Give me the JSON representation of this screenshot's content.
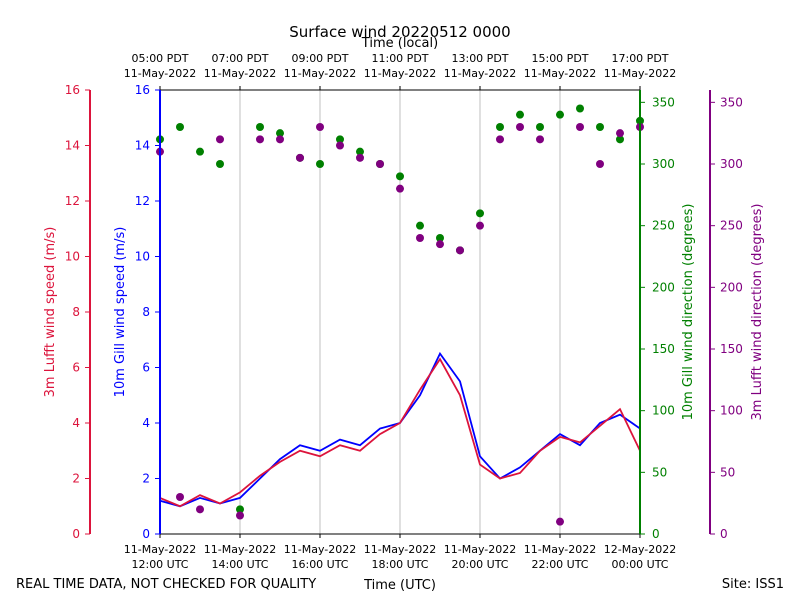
{
  "chart_data": {
    "type": "line+scatter",
    "title": "Surface wind 20220512 0000",
    "xlabel_bottom": "Time (UTC)",
    "xlabel_top": "Time (local)",
    "footer_left": "REAL TIME DATA, NOT CHECKED FOR QUALITY",
    "footer_right": "Site: ISS1",
    "x_range_hours_utc": [
      12,
      24
    ],
    "bottom_ticks": [
      {
        "hour": 12,
        "line1": "11-May-2022",
        "line2": "12:00 UTC"
      },
      {
        "hour": 14,
        "line1": "11-May-2022",
        "line2": "14:00 UTC"
      },
      {
        "hour": 16,
        "line1": "11-May-2022",
        "line2": "16:00 UTC"
      },
      {
        "hour": 18,
        "line1": "11-May-2022",
        "line2": "18:00 UTC"
      },
      {
        "hour": 20,
        "line1": "11-May-2022",
        "line2": "20:00 UTC"
      },
      {
        "hour": 22,
        "line1": "11-May-2022",
        "line2": "22:00 UTC"
      },
      {
        "hour": 24,
        "line1": "12-May-2022",
        "line2": "00:00 UTC"
      }
    ],
    "top_ticks": [
      {
        "hour": 12,
        "line1": "05:00 PDT",
        "line2": "11-May-2022"
      },
      {
        "hour": 14,
        "line1": "07:00 PDT",
        "line2": "11-May-2022"
      },
      {
        "hour": 16,
        "line1": "09:00 PDT",
        "line2": "11-May-2022"
      },
      {
        "hour": 18,
        "line1": "11:00 PDT",
        "line2": "11-May-2022"
      },
      {
        "hour": 20,
        "line1": "13:00 PDT",
        "line2": "11-May-2022"
      },
      {
        "hour": 22,
        "line1": "15:00 PDT",
        "line2": "11-May-2022"
      },
      {
        "hour": 24,
        "line1": "17:00 PDT",
        "line2": "11-May-2022"
      }
    ],
    "axes": {
      "lufft_speed": {
        "label": "3m Lufft wind speed (m/s)",
        "range": [
          0,
          16
        ],
        "ticks": [
          0,
          2,
          4,
          6,
          8,
          10,
          12,
          14,
          16
        ],
        "color": "#dc143c"
      },
      "gill_speed": {
        "label": "10m Gill wind speed (m/s)",
        "range": [
          0,
          16
        ],
        "ticks": [
          0,
          2,
          4,
          6,
          8,
          10,
          12,
          14,
          16
        ],
        "color": "#0000ff"
      },
      "gill_dir": {
        "label": "10m Gill wind direction (degrees)",
        "range": [
          0,
          360
        ],
        "ticks": [
          0,
          50,
          100,
          150,
          200,
          250,
          300,
          350
        ],
        "color": "#008000"
      },
      "lufft_dir": {
        "label": "3m Lufft wind direction (degrees)",
        "range": [
          0,
          360
        ],
        "ticks": [
          0,
          50,
          100,
          150,
          200,
          250,
          300,
          350
        ],
        "color": "#800080"
      }
    },
    "series": [
      {
        "name": "10m Gill wind speed",
        "kind": "line",
        "axis": "gill_speed",
        "color": "#0000ff",
        "hours": [
          12,
          12.5,
          13,
          13.5,
          14,
          14.5,
          15,
          15.5,
          16,
          16.5,
          17,
          17.5,
          18,
          18.5,
          19,
          19.5,
          20,
          20.5,
          21,
          21.5,
          22,
          22.5,
          23,
          23.5,
          24
        ],
        "values": [
          1.2,
          1.0,
          1.3,
          1.1,
          1.3,
          2.0,
          2.7,
          3.2,
          3.0,
          3.4,
          3.2,
          3.8,
          4.0,
          5.0,
          6.5,
          5.5,
          2.8,
          2.0,
          2.4,
          3.0,
          3.6,
          3.2,
          4.0,
          4.3,
          3.8
        ]
      },
      {
        "name": "3m Lufft wind speed",
        "kind": "line",
        "axis": "lufft_speed",
        "color": "#dc143c",
        "hours": [
          12,
          12.5,
          13,
          13.5,
          14,
          14.5,
          15,
          15.5,
          16,
          16.5,
          17,
          17.5,
          18,
          18.5,
          19,
          19.5,
          20,
          20.5,
          21,
          21.5,
          22,
          22.5,
          23,
          23.5,
          24
        ],
        "values": [
          1.3,
          1.0,
          1.4,
          1.1,
          1.5,
          2.1,
          2.6,
          3.0,
          2.8,
          3.2,
          3.0,
          3.6,
          4.0,
          5.2,
          6.3,
          5.0,
          2.5,
          2.0,
          2.2,
          3.0,
          3.5,
          3.3,
          3.9,
          4.5,
          3.0
        ]
      },
      {
        "name": "10m Gill wind direction",
        "kind": "scatter",
        "axis": "gill_dir",
        "color": "#008000",
        "hours": [
          12,
          12.5,
          13,
          13.5,
          14,
          14.5,
          15,
          15.5,
          16,
          16.5,
          17,
          17.5,
          18,
          18.5,
          19,
          19.5,
          20,
          20.5,
          21,
          21.5,
          22,
          22.5,
          23,
          23.5,
          24
        ],
        "values": [
          320,
          330,
          310,
          300,
          20,
          330,
          325,
          305,
          300,
          320,
          310,
          300,
          290,
          250,
          240,
          230,
          260,
          330,
          340,
          330,
          340,
          345,
          330,
          320,
          335
        ]
      },
      {
        "name": "3m Lufft wind direction",
        "kind": "scatter",
        "axis": "lufft_dir",
        "color": "#800080",
        "hours": [
          12,
          12.5,
          13,
          13.5,
          14,
          14.5,
          15,
          15.5,
          16,
          16.5,
          17,
          17.5,
          18,
          18.5,
          19,
          19.5,
          20,
          20.5,
          21,
          21.5,
          22,
          22.5,
          23,
          23.5,
          24
        ],
        "values": [
          310,
          30,
          20,
          320,
          15,
          320,
          320,
          305,
          330,
          315,
          305,
          300,
          280,
          240,
          235,
          230,
          250,
          320,
          330,
          320,
          10,
          330,
          300,
          325,
          330
        ]
      }
    ]
  }
}
